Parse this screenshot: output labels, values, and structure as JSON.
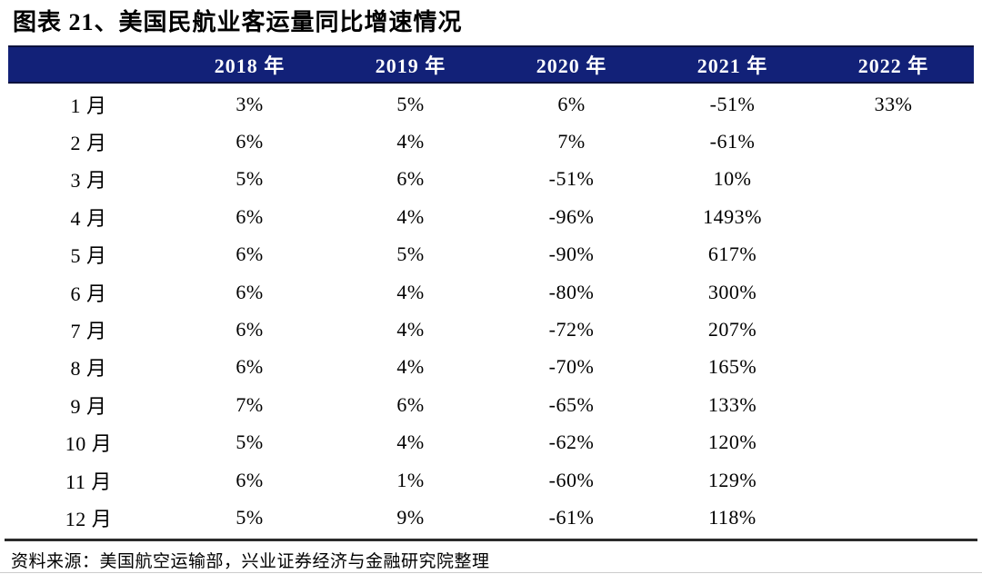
{
  "title": "图表 21、美国民航业客运量同比增速情况",
  "colors": {
    "header_bg": "#122178",
    "header_text": "#ffffff",
    "body_text": "#000000",
    "rule": "#2b2b2b"
  },
  "table": {
    "columns": [
      "",
      "2018 年",
      "2019 年",
      "2020 年",
      "2021 年",
      "2022 年"
    ],
    "rows": [
      {
        "month": "1 月",
        "values": [
          "3%",
          "5%",
          "6%",
          "-51%",
          "33%"
        ]
      },
      {
        "month": "2 月",
        "values": [
          "6%",
          "4%",
          "7%",
          "-61%",
          ""
        ]
      },
      {
        "month": "3 月",
        "values": [
          "5%",
          "6%",
          "-51%",
          "10%",
          ""
        ]
      },
      {
        "month": "4 月",
        "values": [
          "6%",
          "4%",
          "-96%",
          "1493%",
          ""
        ]
      },
      {
        "month": "5 月",
        "values": [
          "6%",
          "5%",
          "-90%",
          "617%",
          ""
        ]
      },
      {
        "month": "6 月",
        "values": [
          "6%",
          "4%",
          "-80%",
          "300%",
          ""
        ]
      },
      {
        "month": "7 月",
        "values": [
          "6%",
          "4%",
          "-72%",
          "207%",
          ""
        ]
      },
      {
        "month": "8 月",
        "values": [
          "6%",
          "4%",
          "-70%",
          "165%",
          ""
        ]
      },
      {
        "month": "9 月",
        "values": [
          "7%",
          "6%",
          "-65%",
          "133%",
          ""
        ]
      },
      {
        "month": "10 月",
        "values": [
          "5%",
          "4%",
          "-62%",
          "120%",
          ""
        ]
      },
      {
        "month": "11 月",
        "values": [
          "6%",
          "1%",
          "-60%",
          "129%",
          ""
        ]
      },
      {
        "month": "12 月",
        "values": [
          "5%",
          "9%",
          "-61%",
          "118%",
          ""
        ]
      }
    ]
  },
  "footer": {
    "source": "资料来源：美国航空运输部，兴业证券经济与金融研究院整理"
  },
  "chart_data": {
    "type": "table",
    "title": "图表 21、美国民航业客运量同比增速情况",
    "unit": "%",
    "categories": [
      "1 月",
      "2 月",
      "3 月",
      "4 月",
      "5 月",
      "6 月",
      "7 月",
      "8 月",
      "9 月",
      "10 月",
      "11 月",
      "12 月"
    ],
    "series": [
      {
        "name": "2018 年",
        "values": [
          3,
          6,
          5,
          6,
          6,
          6,
          6,
          6,
          7,
          5,
          6,
          5
        ]
      },
      {
        "name": "2019 年",
        "values": [
          5,
          4,
          6,
          4,
          5,
          4,
          4,
          4,
          6,
          4,
          1,
          9
        ]
      },
      {
        "name": "2020 年",
        "values": [
          6,
          7,
          -51,
          -96,
          -90,
          -80,
          -72,
          -70,
          -65,
          -62,
          -60,
          -61
        ]
      },
      {
        "name": "2021 年",
        "values": [
          -51,
          -61,
          10,
          1493,
          617,
          300,
          207,
          165,
          133,
          120,
          129,
          118
        ]
      },
      {
        "name": "2022 年",
        "values": [
          33,
          null,
          null,
          null,
          null,
          null,
          null,
          null,
          null,
          null,
          null,
          null
        ]
      }
    ],
    "source": "资料来源：美国航空运输部，兴业证券经济与金融研究院整理"
  }
}
